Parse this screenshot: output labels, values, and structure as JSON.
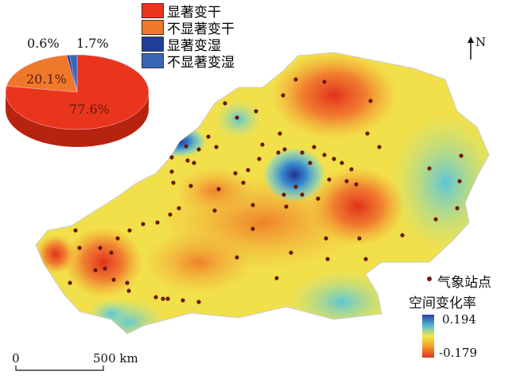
{
  "pie": {
    "slices": [
      {
        "label": "显著变干",
        "value": 77.6,
        "text": "77.6%",
        "color": "#e8351c"
      },
      {
        "label": "不显著变干",
        "value": 20.1,
        "text": "20.1%",
        "color": "#f0782a"
      },
      {
        "label": "显著变湿",
        "value": 0.6,
        "text": "0.6%",
        "color": "#1f3f9a"
      },
      {
        "label": "不显著变湿",
        "value": 1.7,
        "text": "1.7%",
        "color": "#3a66b8"
      }
    ]
  },
  "north_label": "N",
  "station_label": "气象站点",
  "rate_label": "空间变化率",
  "colorbar": {
    "max": "0.194",
    "min": "-0.179",
    "colors": [
      "#2a3fa0",
      "#4fb6d8",
      "#f2e84a",
      "#f39a2a",
      "#e2301c"
    ]
  },
  "scale": {
    "start": "0",
    "end": "500 km"
  }
}
